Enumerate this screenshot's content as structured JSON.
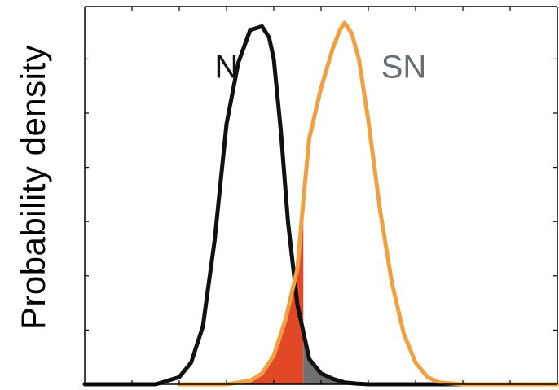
{
  "chart_data": {
    "type": "line",
    "title": "",
    "xlabel": "",
    "ylabel": "Probability density",
    "xlim": [
      0,
      20
    ],
    "ylim": [
      0,
      1
    ],
    "grid": false,
    "legend": "none",
    "y_ticks": [
      0.15,
      0.3,
      0.45,
      0.6,
      0.75,
      0.9
    ],
    "x_ticks": [
      2,
      4,
      6,
      8,
      10,
      12,
      14,
      16,
      18
    ],
    "criterion": 9.25,
    "series": [
      {
        "name": "N",
        "color": "#111111",
        "x": [
          0,
          1,
          2,
          3,
          3.5,
          4,
          4.5,
          5,
          5.5,
          6,
          6.5,
          7,
          7.5,
          7.8,
          8,
          8.3,
          8.6,
          9,
          9.5,
          10,
          10.5,
          11,
          11.5,
          12,
          13,
          14,
          16,
          18,
          20
        ],
        "values": [
          0,
          0,
          0,
          0,
          0.01,
          0.02,
          0.06,
          0.16,
          0.4,
          0.72,
          0.89,
          0.98,
          0.99,
          0.96,
          0.9,
          0.7,
          0.45,
          0.22,
          0.07,
          0.03,
          0.015,
          0.005,
          0.002,
          0,
          0,
          0,
          0,
          0,
          0
        ]
      },
      {
        "name": "SN",
        "color": "#f0a040",
        "x": [
          4,
          5,
          6,
          7,
          7.5,
          8,
          8.5,
          9,
          9.25,
          9.5,
          10,
          10.5,
          10.8,
          11,
          11.3,
          11.6,
          12,
          12.5,
          13,
          13.5,
          14,
          14.5,
          15,
          16,
          17,
          18,
          20
        ],
        "values": [
          0,
          0,
          0,
          0.01,
          0.03,
          0.08,
          0.18,
          0.32,
          0.51,
          0.68,
          0.82,
          0.93,
          0.98,
          1.0,
          0.97,
          0.9,
          0.73,
          0.48,
          0.28,
          0.14,
          0.06,
          0.02,
          0.005,
          0,
          0,
          0,
          0
        ]
      }
    ],
    "shaded_regions": [
      {
        "name": "miss-area",
        "series": "SN",
        "x_from": 6.5,
        "x_to": 9.25,
        "color": "#e04828"
      },
      {
        "name": "false-alarm-area",
        "series": "N",
        "x_from": 9.25,
        "x_to": 11.5,
        "color": "#707070"
      }
    ],
    "annotations": [
      {
        "text": "N",
        "x": 6.0,
        "y": 0.88,
        "color": "#111111"
      },
      {
        "text": "SN",
        "x": 13.5,
        "y": 0.88,
        "color": "#666e74"
      }
    ]
  }
}
